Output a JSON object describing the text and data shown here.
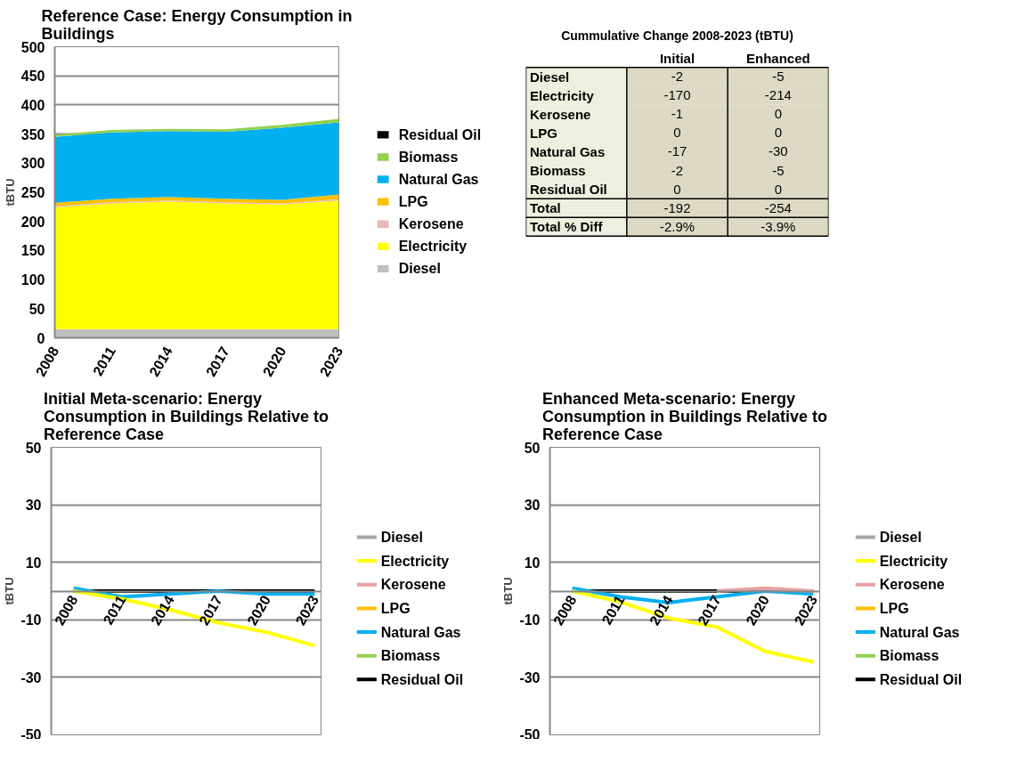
{
  "chart_data": [
    {
      "type": "area",
      "stacked": true,
      "title": "Reference Case: Energy Consumption in Buildings",
      "ylabel": "tBTU",
      "x": [
        2008,
        2011,
        2014,
        2017,
        2020,
        2023
      ],
      "xlim": [
        2008,
        2023
      ],
      "xticks": [
        2008,
        2011,
        2014,
        2017,
        2020,
        2023
      ],
      "ylim": [
        0,
        500
      ],
      "yticks": [
        0,
        50,
        100,
        150,
        200,
        250,
        300,
        350,
        400,
        450,
        500
      ],
      "grid": "y",
      "legend": "right",
      "series": [
        {
          "name": "Diesel",
          "color": "#bfbfbf",
          "values": [
            15,
            15,
            15,
            15,
            15,
            15
          ]
        },
        {
          "name": "Electricity",
          "color": "#ffff00",
          "values": [
            209,
            216,
            219,
            216,
            214,
            221
          ]
        },
        {
          "name": "Kerosene",
          "color": "#e6b9b8",
          "values": [
            2,
            2,
            2,
            2,
            2,
            2
          ]
        },
        {
          "name": "LPG",
          "color": "#ffc000",
          "values": [
            6,
            6,
            6,
            6,
            6,
            8
          ]
        },
        {
          "name": "Natural Gas",
          "color": "#00b0f0",
          "values": [
            113,
            114,
            113,
            115,
            124,
            124
          ]
        },
        {
          "name": "Biomass",
          "color": "#92d050",
          "values": [
            4,
            4,
            4,
            4,
            5,
            6
          ]
        },
        {
          "name": "Residual Oil",
          "color": "#000000",
          "values": [
            null,
            null,
            null,
            null,
            null,
            null
          ]
        }
      ]
    },
    {
      "type": "other",
      "title": "Cummulative Change 2008-2023 (tBTU)",
      "annotations": [
        "Initial",
        "Enhanced",
        "Diesel",
        "-2",
        "-5",
        "Electricity",
        "-170",
        "-214",
        "Kerosene",
        "-1",
        "0",
        "LPG",
        "0",
        "0",
        "Natural Gas",
        "-17",
        "-30",
        "Biomass",
        "-2",
        "-5",
        "Residual Oil",
        "0",
        "0",
        "Total",
        "-192",
        "-254",
        "Total % Diff",
        "-2.9%",
        "-3.9%"
      ]
    },
    {
      "type": "line",
      "title": "Initial Meta-scenario: Energy Consumption in Buildings Relative to Reference Case",
      "ylabel": "tBTU",
      "x": [
        2008,
        2011,
        2014,
        2017,
        2020,
        2023
      ],
      "xlim": [
        2006.6,
        2023.4
      ],
      "xticks": [
        2008,
        2011,
        2014,
        2017,
        2020,
        2023
      ],
      "ylim": [
        -50,
        50
      ],
      "yticks": [
        -50,
        -30,
        -10,
        10,
        30,
        50
      ],
      "grid": "y",
      "legend": "right",
      "series": [
        {
          "name": "Diesel",
          "color": "#a6a6a6",
          "values": [
            null,
            null,
            null,
            null,
            null,
            null
          ]
        },
        {
          "name": "Electricity",
          "color": "#ffff00",
          "values": [
            0,
            -2.7,
            -6.5,
            -11,
            -14.3,
            -19
          ]
        },
        {
          "name": "Kerosene",
          "color": "#e6a0a0",
          "values": [
            null,
            null,
            null,
            null,
            null,
            null
          ]
        },
        {
          "name": "LPG",
          "color": "#ffc000",
          "values": [
            null,
            null,
            null,
            null,
            null,
            null
          ]
        },
        {
          "name": "Natural Gas",
          "color": "#00b0f0",
          "values": [
            1,
            -2,
            -1,
            0,
            -1,
            -1
          ]
        },
        {
          "name": "Biomass",
          "color": "#92d050",
          "values": [
            null,
            null,
            null,
            null,
            null,
            null
          ]
        },
        {
          "name": "Residual Oil",
          "color": "#000000",
          "values": [
            0,
            0,
            0,
            0,
            0,
            0
          ]
        }
      ]
    },
    {
      "type": "line",
      "title": "Enhanced Meta-scenario: Energy Consumption in Buildings Relative to Reference Case",
      "ylabel": "tBTU",
      "x": [
        2008,
        2011,
        2014,
        2017,
        2020,
        2023
      ],
      "xlim": [
        2006.6,
        2023.4
      ],
      "xticks": [
        2008,
        2011,
        2014,
        2017,
        2020,
        2023
      ],
      "ylim": [
        -50,
        50
      ],
      "yticks": [
        -50,
        -30,
        -10,
        10,
        30,
        50
      ],
      "grid": "y",
      "legend": "right",
      "series": [
        {
          "name": "Diesel",
          "color": "#a6a6a6",
          "values": [
            null,
            null,
            null,
            null,
            null,
            null
          ]
        },
        {
          "name": "Electricity",
          "color": "#ffff00",
          "values": [
            0,
            -3.8,
            -9.4,
            -12.5,
            -21,
            -24.6
          ]
        },
        {
          "name": "Kerosene",
          "color": "#e6a0a0",
          "values": [
            null,
            null,
            null,
            0,
            1,
            0
          ]
        },
        {
          "name": "LPG",
          "color": "#ffc000",
          "values": [
            null,
            null,
            null,
            null,
            null,
            null
          ]
        },
        {
          "name": "Natural Gas",
          "color": "#00b0f0",
          "values": [
            1,
            -2,
            -4,
            -2,
            0,
            -1
          ]
        },
        {
          "name": "Biomass",
          "color": "#92d050",
          "values": [
            null,
            null,
            null,
            null,
            null,
            null
          ]
        },
        {
          "name": "Residual Oil",
          "color": "#000000",
          "values": [
            0,
            0,
            0,
            0,
            0,
            0
          ]
        }
      ]
    }
  ]
}
